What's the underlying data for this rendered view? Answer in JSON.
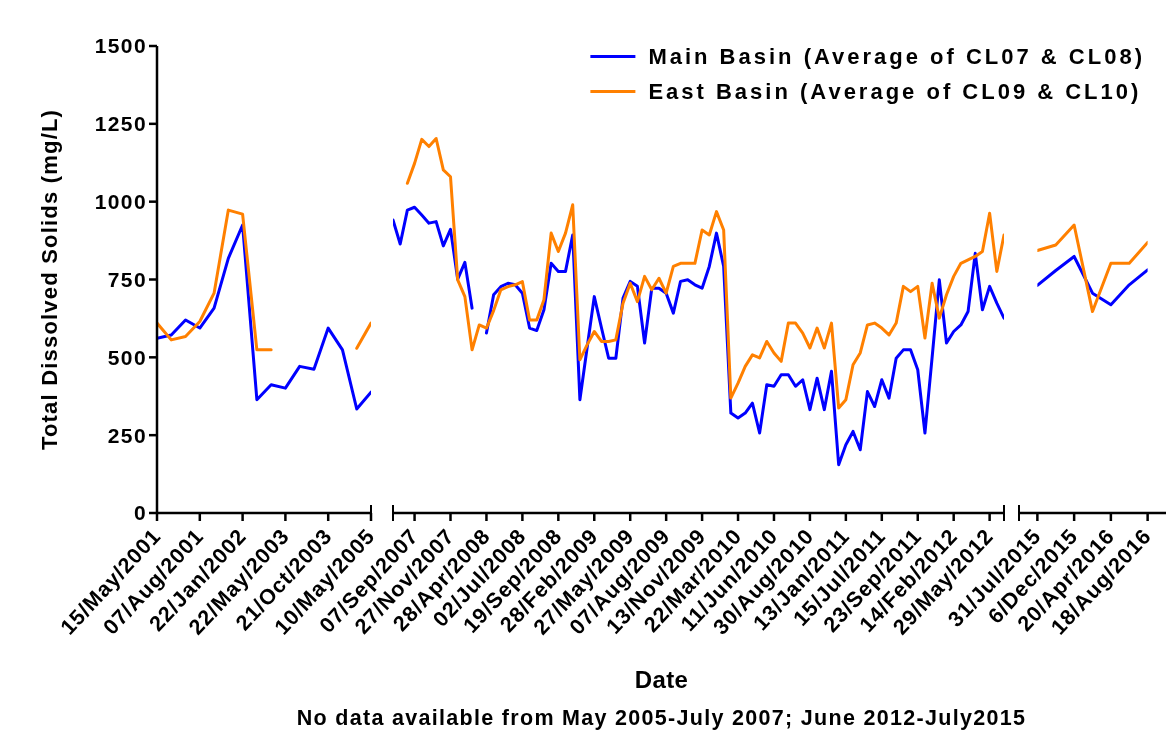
{
  "chart_data": [
    {
      "type": "line",
      "ylabel": "Total Dissolved Solids (mg/L)",
      "categories": [
        "15/May/2001",
        null,
        null,
        "07/Aug/2001",
        null,
        null,
        "22/Jan/2002",
        null,
        null,
        "22/May/2003",
        null,
        null,
        "21/Oct/2003",
        null,
        null,
        "10/May/2005"
      ],
      "series": [
        {
          "color": "#0000ff",
          "values": [
            561,
            572,
            620,
            594,
            658,
            818,
            925,
            364,
            412,
            401,
            471,
            462,
            594,
            524,
            334,
            388
          ]
        },
        {
          "color": "#ff8000",
          "values": [
            610,
            556,
            567,
            615,
            706,
            973,
            960,
            524,
            524,
            null,
            null,
            null,
            null,
            null,
            529,
            610
          ]
        }
      ],
      "ylim": [
        0,
        1500
      ],
      "yticks": [
        0,
        250,
        500,
        750,
        1000,
        1250,
        1500
      ]
    },
    {
      "type": "line",
      "xlabel": "Date",
      "annotations": [
        "No data available from May 2005-July 2007; June 2012-July2015"
      ],
      "legend": "top right",
      "tick_labels": "x",
      "ylim": [
        0,
        1500
      ],
      "categories": [
        null,
        null,
        null,
        "07/Sep/2007",
        null,
        null,
        null,
        null,
        "27/Nov/2007",
        null,
        null,
        null,
        null,
        "28/Apr/2008",
        null,
        null,
        null,
        null,
        "02/Jul/2008",
        null,
        null,
        null,
        null,
        "19/Sep/2008",
        null,
        null,
        null,
        null,
        "28/Feb/2009",
        null,
        null,
        null,
        null,
        "27/May/2009",
        null,
        null,
        null,
        null,
        "07/Aug/2009",
        null,
        null,
        null,
        null,
        "13/Nov/2009",
        null,
        null,
        null,
        null,
        "22/Mar/2010",
        null,
        null,
        null,
        null,
        "11/Jun/2010",
        null,
        null,
        null,
        null,
        "30/Aug/2010",
        null,
        null,
        null,
        null,
        "13/Jan/2011",
        null,
        null,
        null,
        null,
        "15/Jul/2011",
        null,
        null,
        null,
        null,
        "23/Sep/2011",
        null,
        null,
        null,
        null,
        "14/Feb/2012",
        null,
        null,
        null,
        null,
        "29/May/2012",
        null,
        null
      ],
      "series": [
        {
          "name": "Main Basin (Average of CL07 & CL08)",
          "color": "#0000ff",
          "values": [
            941,
            864,
            973,
            982,
            957,
            931,
            936,
            858,
            911,
            751,
            805,
            658,
            null,
            578,
            701,
            727,
            738,
            733,
            706,
            594,
            586,
            653,
            802,
            776,
            776,
            893,
            364,
            530,
            695,
            595,
            497,
            497,
            690,
            744,
            728,
            546,
            722,
            722,
            706,
            642,
            744,
            749,
            733,
            722,
            792,
            899,
            792,
            321,
            305,
            321,
            353,
            257,
            412,
            407,
            444,
            444,
            407,
            428,
            332,
            433,
            332,
            455,
            155,
            219,
            262,
            203,
            390,
            342,
            428,
            369,
            497,
            524,
            524,
            460,
            257,
            500,
            749,
            546,
            583,
            604,
            647,
            834,
            653,
            728,
            674,
            626
          ]
        },
        {
          "name": "East Basin (Average of CL09 & CL10)",
          "color": "#ff8000",
          "values": [
            null,
            null,
            1059,
            1123,
            1200,
            1177,
            1203,
            1102,
            1080,
            749,
            695,
            524,
            604,
            594,
            650,
            717,
            727,
            733,
            743,
            620,
            620,
            685,
            899,
            840,
            899,
            990,
            492,
            540,
            583,
            551,
            551,
            556,
            674,
            738,
            679,
            760,
            717,
            754,
            706,
            792,
            802,
            802,
            802,
            909,
            893,
            968,
            909,
            369,
            417,
            471,
            508,
            498,
            551,
            514,
            487,
            610,
            610,
            578,
            530,
            594,
            530,
            610,
            337,
            364,
            476,
            514,
            604,
            610,
            594,
            572,
            610,
            728,
            711,
            728,
            562,
            738,
            626,
            701,
            760,
            802,
            813,
            824,
            840,
            963,
            776,
            893
          ]
        }
      ]
    },
    {
      "type": "line",
      "tick_labels": "x",
      "ylim": [
        0,
        1500
      ],
      "categories": [
        "31/Jul/2015",
        null,
        "6/Dec/2015",
        null,
        "20/Apr/2016",
        null,
        "18/Aug/2016"
      ],
      "series": [
        {
          "color": "#0000ff",
          "values": [
            731,
            779,
            824,
            706,
            669,
            733,
            781
          ]
        },
        {
          "color": "#ff8000",
          "values": [
            843,
            861,
            925,
            647,
            802,
            802,
            869
          ]
        }
      ]
    }
  ]
}
